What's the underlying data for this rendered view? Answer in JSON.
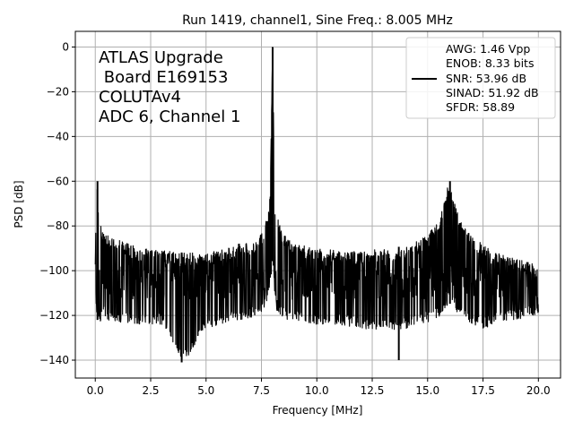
{
  "chart_data": {
    "type": "line",
    "title": "Run 1419, channel1, Sine Freq.: 8.005 MHz",
    "xlabel": "Frequency [MHz]",
    "ylabel": "PSD [dB]",
    "xlim": [
      -0.9,
      21.0
    ],
    "ylim": [
      -148,
      7
    ],
    "grid": true,
    "xticks": [
      0.0,
      2.5,
      5.0,
      7.5,
      10.0,
      12.5,
      15.0,
      17.5,
      20.0
    ],
    "xtick_labels": [
      "0.0",
      "2.5",
      "5.0",
      "7.5",
      "10.0",
      "12.5",
      "15.0",
      "17.5",
      "20.0"
    ],
    "yticks": [
      0,
      -20,
      -40,
      -60,
      -80,
      -100,
      -120,
      -140
    ],
    "ytick_labels": [
      "0",
      "−20",
      "−40",
      "−60",
      "−80",
      "−100",
      "−120",
      "−140"
    ],
    "annotation_lines": [
      "ATLAS Upgrade",
      " Board E169153",
      "COLUTAv4",
      "ADC 6, Channel 1"
    ],
    "legend": {
      "placement": "top-right",
      "lines": [
        "AWG: 1.46 Vpp",
        "ENOB: 8.33 bits",
        "SNR: 53.96 dB",
        "SINAD: 51.92 dB",
        "SFDR: 58.89"
      ]
    },
    "series_color": "#000000",
    "frequency_range": [
      0.0,
      20.0
    ],
    "noise_floor_median_db": -105,
    "spectrum_envelope": {
      "x": [
        0.0,
        0.05,
        0.1,
        0.15,
        0.2,
        0.3,
        0.5,
        1.0,
        2.0,
        3.0,
        4.0,
        5.0,
        6.0,
        6.5,
        7.0,
        7.3,
        7.6,
        7.8,
        7.9,
        8.0,
        8.1,
        8.2,
        8.4,
        8.7,
        9.0,
        10.0,
        11.0,
        12.0,
        13.0,
        14.0,
        14.5,
        15.0,
        15.3,
        15.6,
        15.8,
        15.95,
        16.1,
        16.3,
        16.6,
        17.0,
        17.5,
        18.0,
        19.0,
        20.0
      ],
      "max": [
        -95,
        -62,
        -60,
        -75,
        -78,
        -82,
        -84,
        -86,
        -90,
        -91,
        -92,
        -92,
        -90,
        -88,
        -87,
        -86,
        -82,
        -72,
        -64,
        0,
        -68,
        -75,
        -82,
        -86,
        -88,
        -90,
        -91,
        -91,
        -90,
        -89,
        -87,
        -84,
        -80,
        -74,
        -68,
        -60,
        -66,
        -72,
        -80,
        -85,
        -88,
        -92,
        -94,
        -98
      ],
      "min": [
        -108,
        -118,
        -122,
        -120,
        -124,
        -120,
        -122,
        -123,
        -124,
        -124,
        -141,
        -126,
        -124,
        -122,
        -121,
        -120,
        -118,
        -112,
        -108,
        -95,
        -110,
        -118,
        -121,
        -122,
        -122,
        -124,
        -124,
        -126,
        -127,
        -126,
        -124,
        -123,
        -122,
        -120,
        -118,
        -114,
        -116,
        -120,
        -122,
        -124,
        -126,
        -124,
        -122,
        -120
      ]
    },
    "notable_points": [
      {
        "x": 8.005,
        "y": 0,
        "label": "fundamental"
      },
      {
        "x": 16.01,
        "y": -60,
        "label": "2nd harmonic"
      },
      {
        "x": 0.1,
        "y": -60,
        "label": "DC"
      },
      {
        "x": 3.9,
        "y": -141,
        "label": "min"
      },
      {
        "x": 13.7,
        "y": -140,
        "label": "min"
      }
    ]
  }
}
